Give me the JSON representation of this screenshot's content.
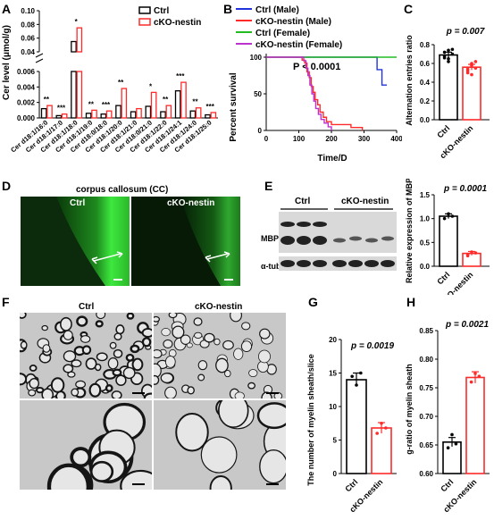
{
  "colors": {
    "ctrl": "#000000",
    "cko": "#ff2a2a",
    "ctrl_female": "#22bb22",
    "cko_female": "#bb33cc",
    "ctrl_male": "#2233dd",
    "fluor": "#2fd02f"
  },
  "panel_labels": {
    "A": "A",
    "B": "B",
    "C": "C",
    "D": "D",
    "E": "E",
    "F": "F",
    "G": "G",
    "H": "H"
  },
  "panelA": {
    "ylabel": "Cer level (μmol/g)",
    "legend": [
      "Ctrl",
      "cKO-nestin"
    ],
    "upper_ticks": [
      "0.10",
      "0.08",
      "0.06",
      "0.04"
    ],
    "lower_ticks": [
      "0.006",
      "0.004",
      "0.002",
      "0.000"
    ],
    "categories": [
      "Cer d18:1/16:0",
      "Cer d18:1/17:0",
      "Cer d18:1/18:0",
      "Cer d18:1/19:0",
      "Cer d18:0/18:0",
      "Cer d18:1/20:0",
      "Cer d18:1/21:0",
      "Cer d18:0/21:0",
      "Cer d18:1/22:0",
      "Cer d18:1/24:1",
      "Cer d18:1/24:0",
      "Cer d18:1/25:0"
    ],
    "ctrl": [
      0.0012,
      0.0003,
      0.055,
      0.0006,
      0.0005,
      0.0016,
      0.0008,
      0.0015,
      0.0008,
      0.0035,
      0.0009,
      0.0004
    ],
    "cko": [
      0.0016,
      0.0005,
      0.075,
      0.001,
      0.0009,
      0.0038,
      0.0012,
      0.0033,
      0.0016,
      0.0046,
      0.0013,
      0.0007
    ],
    "sig": [
      "**",
      "***",
      "*",
      "**",
      "***",
      "**",
      "",
      "*",
      "**",
      "***",
      "**",
      "***"
    ]
  },
  "panelB": {
    "ylabel": "Percent survival",
    "xlabel": "Time/D",
    "legend": [
      "Ctrl (Male)",
      "cKO-nestin (Male)",
      "Ctrl (Female)",
      "cKO-nestin (Female)"
    ],
    "pvalue": "P < 0.0001",
    "xticks": [
      "0",
      "100",
      "200",
      "300",
      "400"
    ],
    "yticks": [
      "100",
      "50",
      "0"
    ],
    "xlim": [
      0,
      400
    ],
    "ylim": [
      0,
      100
    ],
    "curves": {
      "ctrl_male": [
        [
          0,
          100
        ],
        [
          340,
          100
        ],
        [
          340,
          83
        ],
        [
          355,
          83
        ],
        [
          355,
          62
        ],
        [
          370,
          62
        ]
      ],
      "cko_male": [
        [
          0,
          100
        ],
        [
          100,
          100
        ],
        [
          110,
          96
        ],
        [
          118,
          92
        ],
        [
          125,
          80
        ],
        [
          132,
          72
        ],
        [
          138,
          60
        ],
        [
          144,
          52
        ],
        [
          150,
          42
        ],
        [
          158,
          35
        ],
        [
          165,
          25
        ],
        [
          175,
          18
        ],
        [
          185,
          12
        ],
        [
          200,
          8
        ],
        [
          215,
          8
        ],
        [
          250,
          8
        ],
        [
          260,
          4
        ],
        [
          280,
          4
        ],
        [
          295,
          0
        ]
      ],
      "ctrl_female": [
        [
          0,
          100
        ],
        [
          400,
          100
        ]
      ],
      "cko_female": [
        [
          0,
          100
        ],
        [
          105,
          100
        ],
        [
          115,
          95
        ],
        [
          122,
          85
        ],
        [
          128,
          75
        ],
        [
          134,
          62
        ],
        [
          140,
          50
        ],
        [
          146,
          40
        ],
        [
          152,
          30
        ],
        [
          160,
          22
        ],
        [
          168,
          15
        ],
        [
          178,
          10
        ],
        [
          190,
          5
        ],
        [
          200,
          0
        ]
      ]
    }
  },
  "panelC": {
    "ylabel": "Alternation entries ratio",
    "pvalue": "p = 0.007",
    "yticks": [
      "0.8",
      "0.6",
      "0.4",
      "0.2",
      "0.0"
    ],
    "ylim": [
      0,
      0.8
    ],
    "categories": [
      "Ctrl",
      "cKO-nestin"
    ],
    "values": [
      0.69,
      0.56
    ],
    "errors": [
      0.03,
      0.03
    ]
  },
  "panelD": {
    "title": "corpus callosum (CC)",
    "labels": [
      "Ctrl",
      "cKO-nestin"
    ]
  },
  "panelE": {
    "ctrl_label": "Ctrl",
    "cko_label": "cKO-nestin",
    "row_labels": [
      "MBP",
      "α-tubulin"
    ],
    "ylabel": "Relative expression of MBP",
    "pvalue": "p = 0.0001",
    "yticks": [
      "1.5",
      "1.0",
      "0.5",
      "0.0"
    ],
    "ylim": [
      0,
      1.5
    ],
    "categories": [
      "Ctrl",
      "cKO-nestin"
    ],
    "values": [
      1.05,
      0.27
    ],
    "errors": [
      0.05,
      0.04
    ]
  },
  "panelF": {
    "labels": [
      "Ctrl",
      "cKO-nestin"
    ]
  },
  "panelG": {
    "ylabel": "The number of myelin sheath/slice",
    "pvalue": "p = 0.0019",
    "yticks": [
      "20",
      "15",
      "10",
      "5",
      "0"
    ],
    "ylim": [
      0,
      20
    ],
    "categories": [
      "Ctrl",
      "cKO-nestin"
    ],
    "values": [
      14,
      6.8
    ],
    "errors": [
      1.0,
      0.8
    ]
  },
  "panelH": {
    "ylabel": "g-ratio of myelin sheath",
    "pvalue": "p = 0.0021",
    "yticks": [
      "0.85",
      "0.80",
      "0.75",
      "0.70",
      "0.65",
      "0.60"
    ],
    "ylim": [
      0.6,
      0.85
    ],
    "categories": [
      "Ctrl",
      "cKO-nestin"
    ],
    "values": [
      0.655,
      0.768
    ],
    "errors": [
      0.008,
      0.01
    ]
  }
}
